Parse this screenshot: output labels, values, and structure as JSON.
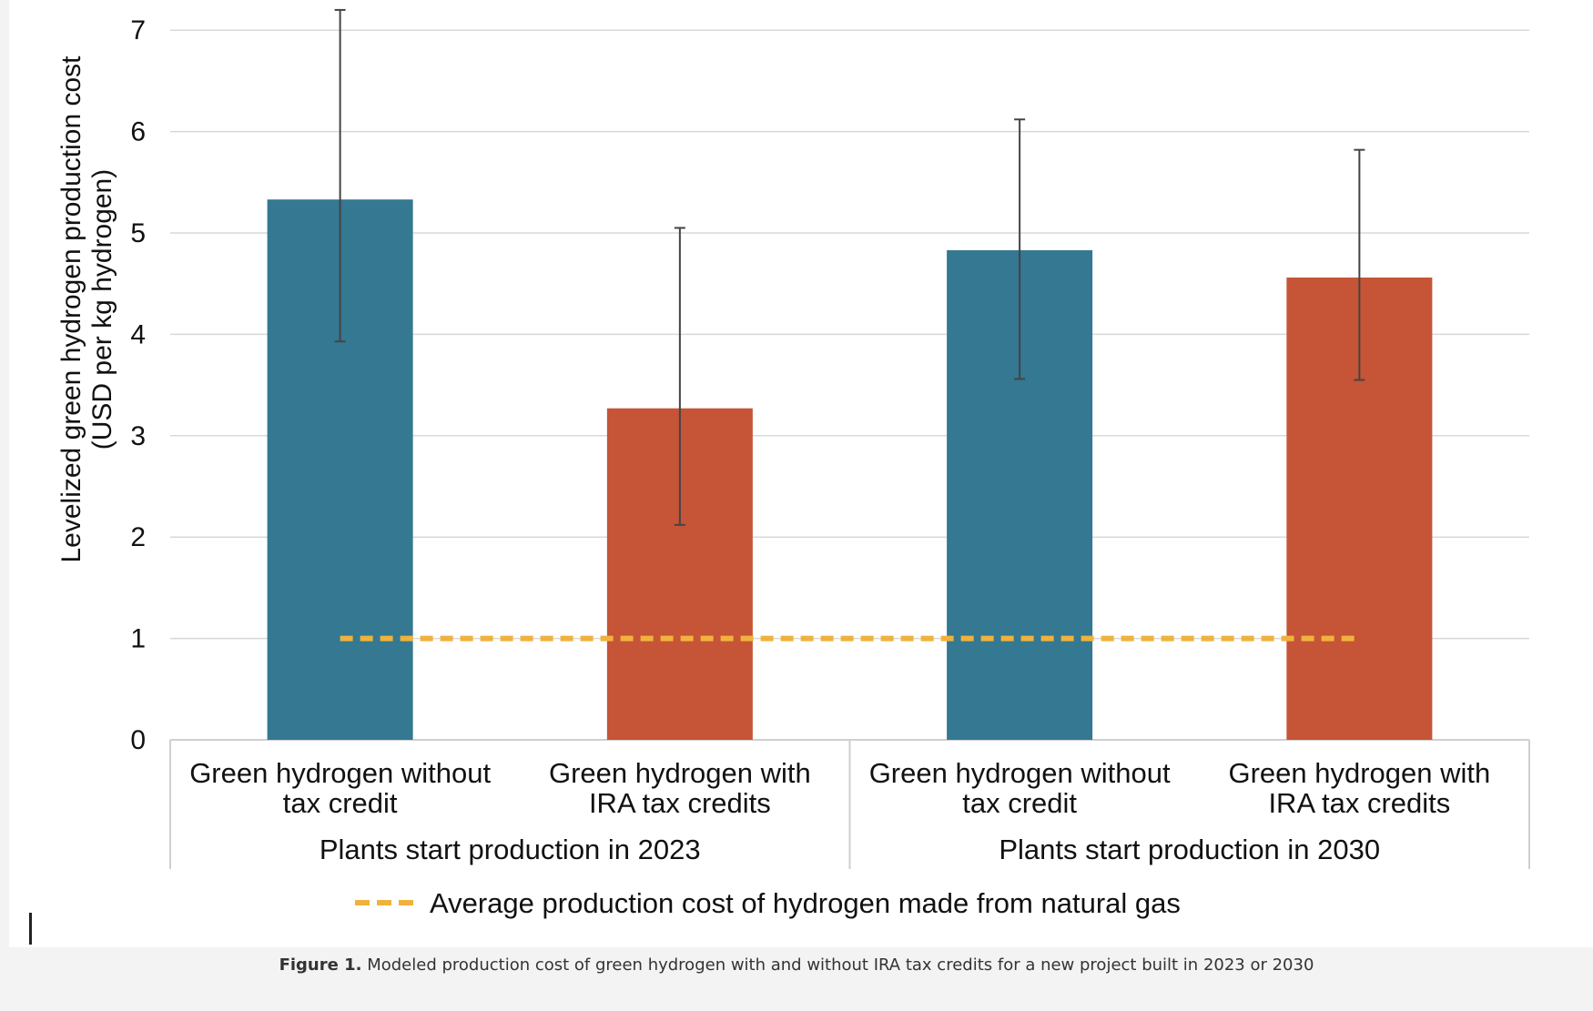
{
  "caption": {
    "label": "Figure 1.",
    "text": "Modeled production cost of green hydrogen with and without IRA tax credits for a new project built in 2023 or 2030"
  },
  "chart_data": {
    "type": "bar",
    "ylabel_line1": "Levelized green hydrogen production cost",
    "ylabel_line2": "(USD per kg hydrogen)",
    "ylim": [
      0,
      7
    ],
    "yticks": [
      0,
      1,
      2,
      3,
      4,
      5,
      6,
      7
    ],
    "grid": true,
    "groups": [
      {
        "label": "Plants start production in 2023"
      },
      {
        "label": "Plants start production in 2030"
      }
    ],
    "bars": [
      {
        "label_line1": "Green hydrogen without",
        "label_line2": "tax credit",
        "value": 5.33,
        "error_low": 3.93,
        "error_high": 7.2,
        "color": "#347891",
        "group": 0
      },
      {
        "label_line1": "Green hydrogen with",
        "label_line2": "IRA tax credits",
        "value": 3.27,
        "error_low": 2.12,
        "error_high": 5.05,
        "color": "#c65436",
        "group": 0
      },
      {
        "label_line1": "Green hydrogen without",
        "label_line2": "tax credit",
        "value": 4.83,
        "error_low": 3.56,
        "error_high": 6.12,
        "color": "#347891",
        "group": 1
      },
      {
        "label_line1": "Green hydrogen with",
        "label_line2": "IRA tax credits",
        "value": 4.56,
        "error_low": 3.55,
        "error_high": 5.82,
        "color": "#c65436",
        "group": 1
      }
    ],
    "reference_line": {
      "value": 1,
      "color": "#f0b23c",
      "legend_label": "Average production cost of hydrogen made from natural gas"
    },
    "legend_position": "bottom"
  }
}
